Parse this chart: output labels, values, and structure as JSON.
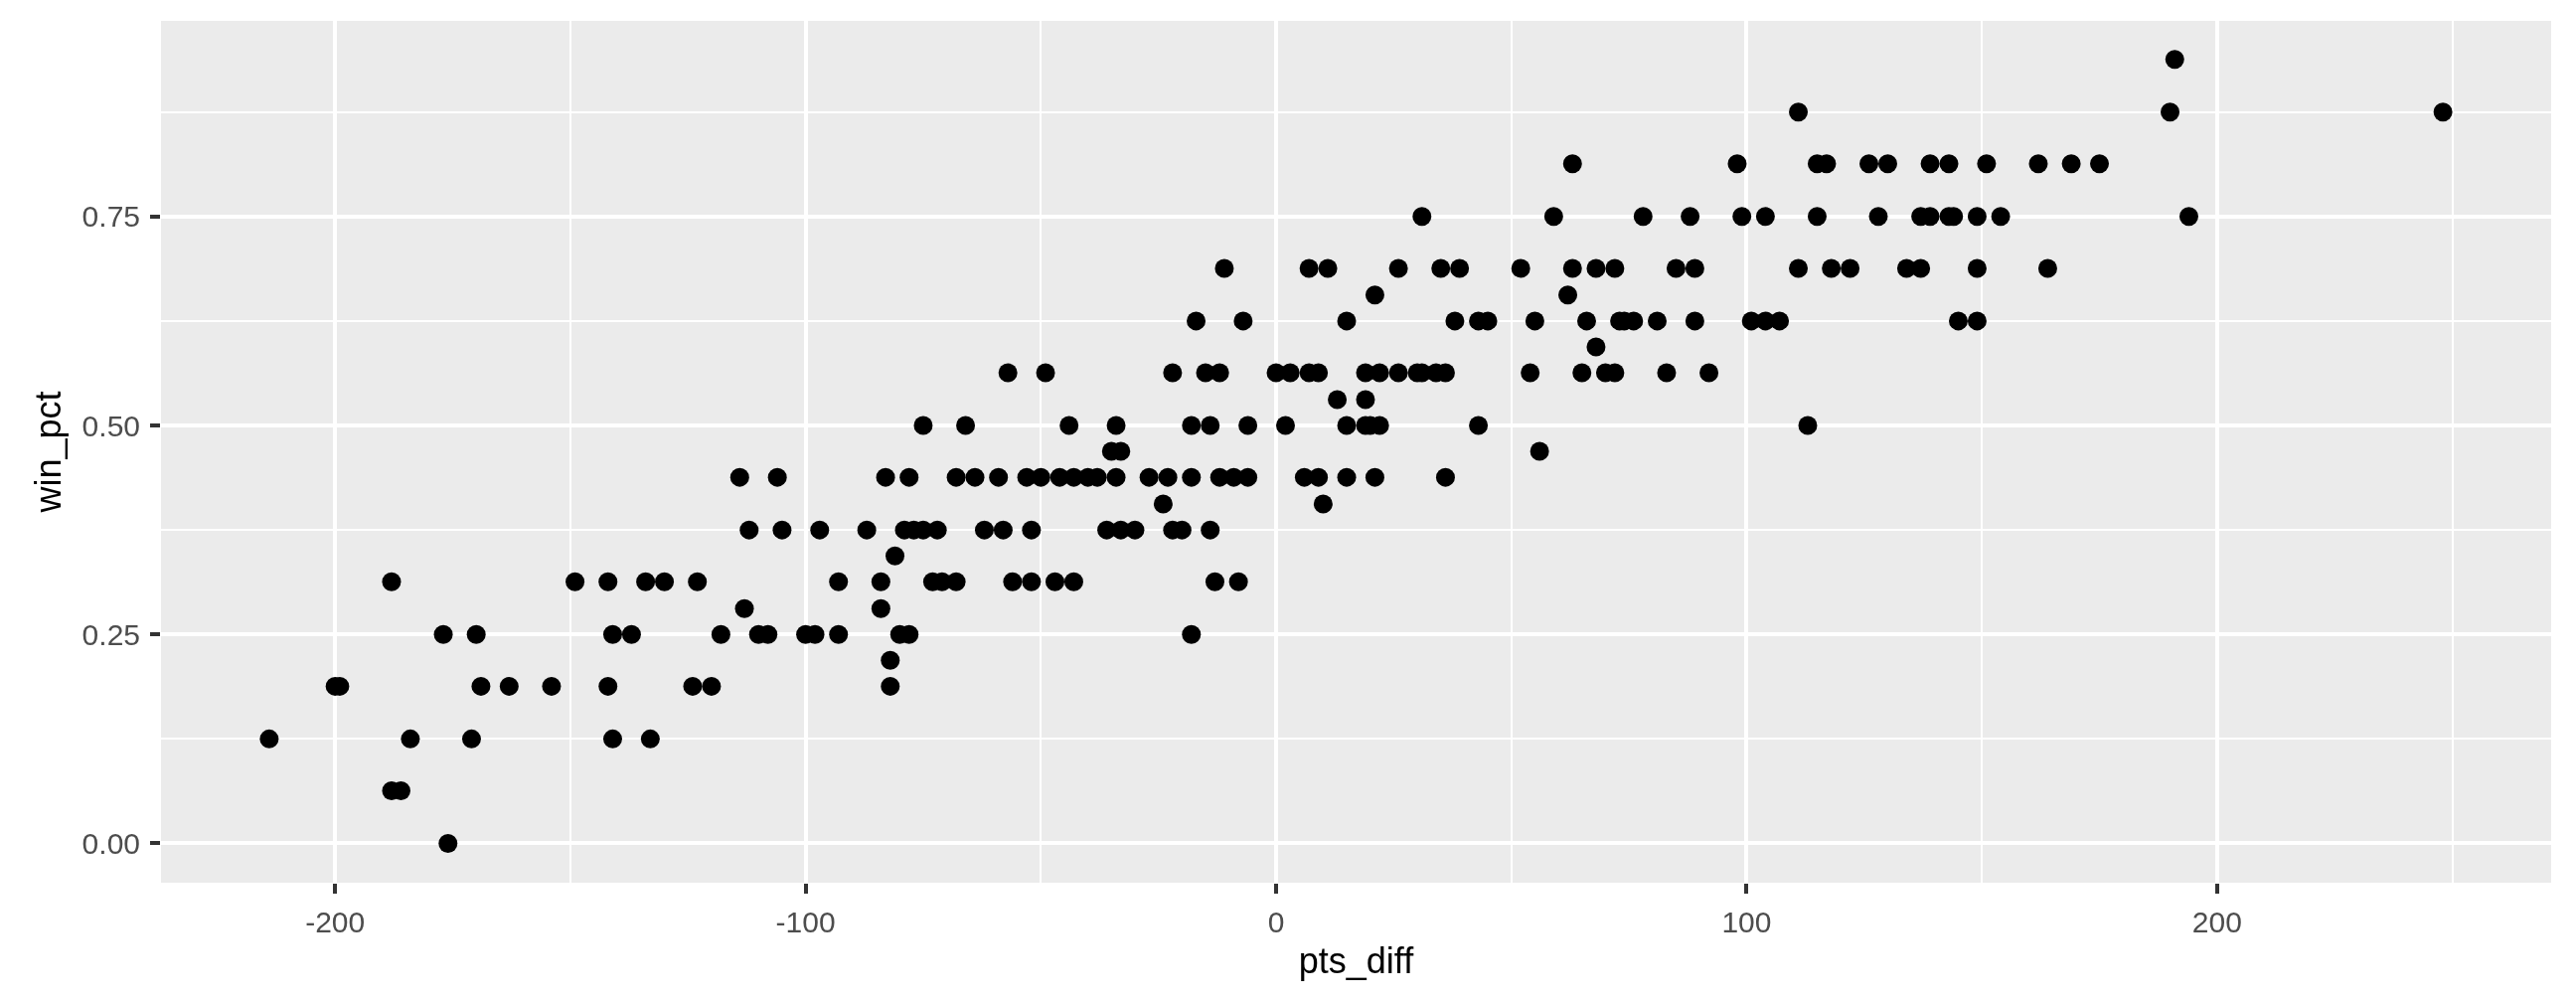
{
  "chart_data": {
    "type": "scatter",
    "xlabel": "pts_diff",
    "ylabel": "win_pct",
    "color": "#000000",
    "marker": "circle",
    "grid": true,
    "xlim": [
      -237,
      271
    ],
    "ylim": [
      -0.047,
      0.984
    ],
    "xticks": [
      -200,
      -100,
      0,
      100,
      200
    ],
    "yticks": [
      {
        "value": 0,
        "label": "0.00"
      },
      0.25,
      {
        "value": 0.5,
        "label": "0.50"
      },
      0.75
    ],
    "x": [
      -176,
      -188,
      -186,
      -214,
      -184,
      -171,
      -141,
      -133,
      -200,
      -199,
      -169,
      -163,
      -154,
      -142,
      -124,
      -120,
      -82,
      -82,
      -177,
      -170,
      -141,
      -137,
      -118,
      -110,
      -108,
      -100,
      -98,
      -93,
      -80,
      -78,
      -18,
      -113,
      -84,
      -188,
      -149,
      -142,
      -134,
      -130,
      -123,
      -93,
      -84,
      -73,
      -71,
      -68,
      -56,
      -52,
      -47,
      -43,
      -13,
      -8,
      -81,
      -112,
      -105,
      -97,
      -87,
      -79,
      -77,
      -75,
      -72,
      -62,
      -58,
      -52,
      -36,
      -33,
      -30,
      -22,
      -20,
      -14,
      -24,
      10,
      -114,
      -106,
      -83,
      -78,
      -68,
      -64,
      -59,
      -53,
      -50,
      -46,
      -43,
      -40,
      -38,
      -34,
      -27,
      -23,
      -18,
      -12,
      -9,
      -6,
      6,
      9,
      15,
      21,
      36,
      -35,
      -33,
      56,
      -75,
      -66,
      -44,
      -34,
      -18,
      -14,
      -6,
      2,
      15,
      19,
      20,
      22,
      43,
      113,
      13,
      19,
      -57,
      -49,
      -22,
      -15,
      -12,
      0,
      3,
      7,
      9,
      19,
      22,
      26,
      30,
      31,
      34,
      36,
      54,
      65,
      70,
      72,
      83,
      92,
      68,
      -17,
      -7,
      15,
      38,
      43,
      45,
      55,
      66,
      73,
      74,
      76,
      81,
      89,
      101,
      104,
      107,
      145,
      149,
      21,
      62,
      -11,
      7,
      11,
      26,
      35,
      39,
      52,
      63,
      68,
      72,
      85,
      89,
      111,
      118,
      122,
      134,
      137,
      149,
      164,
      31,
      59,
      78,
      88,
      99,
      104,
      115,
      128,
      137,
      139,
      143,
      144,
      149,
      154,
      194,
      63,
      98,
      115,
      117,
      126,
      130,
      139,
      143,
      151,
      162,
      169,
      175,
      111,
      190,
      248,
      191
    ],
    "values": [
      0,
      0.063,
      0.063,
      0.125,
      0.125,
      0.125,
      0.125,
      0.125,
      0.188,
      0.188,
      0.188,
      0.188,
      0.188,
      0.188,
      0.188,
      0.188,
      0.188,
      0.219,
      0.25,
      0.25,
      0.25,
      0.25,
      0.25,
      0.25,
      0.25,
      0.25,
      0.25,
      0.25,
      0.25,
      0.25,
      0.25,
      0.281,
      0.281,
      0.313,
      0.313,
      0.313,
      0.313,
      0.313,
      0.313,
      0.313,
      0.313,
      0.313,
      0.313,
      0.313,
      0.313,
      0.313,
      0.313,
      0.313,
      0.313,
      0.313,
      0.344,
      0.375,
      0.375,
      0.375,
      0.375,
      0.375,
      0.375,
      0.375,
      0.375,
      0.375,
      0.375,
      0.375,
      0.375,
      0.375,
      0.375,
      0.375,
      0.375,
      0.375,
      0.406,
      0.406,
      0.438,
      0.438,
      0.438,
      0.438,
      0.438,
      0.438,
      0.438,
      0.438,
      0.438,
      0.438,
      0.438,
      0.438,
      0.438,
      0.438,
      0.438,
      0.438,
      0.438,
      0.438,
      0.438,
      0.438,
      0.438,
      0.438,
      0.438,
      0.438,
      0.438,
      0.469,
      0.469,
      0.469,
      0.5,
      0.5,
      0.5,
      0.5,
      0.5,
      0.5,
      0.5,
      0.5,
      0.5,
      0.5,
      0.5,
      0.5,
      0.5,
      0.5,
      0.531,
      0.531,
      0.563,
      0.563,
      0.563,
      0.563,
      0.563,
      0.563,
      0.563,
      0.563,
      0.563,
      0.563,
      0.563,
      0.563,
      0.563,
      0.563,
      0.563,
      0.563,
      0.563,
      0.563,
      0.563,
      0.563,
      0.563,
      0.563,
      0.594,
      0.625,
      0.625,
      0.625,
      0.625,
      0.625,
      0.625,
      0.625,
      0.625,
      0.625,
      0.625,
      0.625,
      0.625,
      0.625,
      0.625,
      0.625,
      0.625,
      0.625,
      0.625,
      0.656,
      0.656,
      0.688,
      0.688,
      0.688,
      0.688,
      0.688,
      0.688,
      0.688,
      0.688,
      0.688,
      0.688,
      0.688,
      0.688,
      0.688,
      0.688,
      0.688,
      0.688,
      0.688,
      0.688,
      0.688,
      0.75,
      0.75,
      0.75,
      0.75,
      0.75,
      0.75,
      0.75,
      0.75,
      0.75,
      0.75,
      0.75,
      0.75,
      0.75,
      0.75,
      0.75,
      0.813,
      0.813,
      0.813,
      0.813,
      0.813,
      0.813,
      0.813,
      0.813,
      0.813,
      0.813,
      0.813,
      0.813,
      0.875,
      0.875,
      0.875,
      0.938
    ]
  }
}
